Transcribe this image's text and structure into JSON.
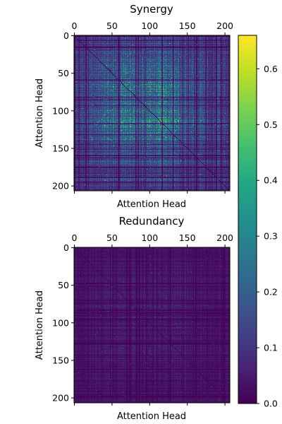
{
  "chart_data": [
    {
      "type": "heatmap",
      "title": "Synergy",
      "xlabel": "Attention Head",
      "ylabel": "Attention Head",
      "n": 207,
      "xticks": [
        0,
        50,
        100,
        150,
        200
      ],
      "yticks": [
        0,
        50,
        100,
        150,
        200
      ],
      "value_stats": {
        "typical": 0.12,
        "max": 0.6,
        "diagonal": 0.0
      },
      "note_hot_region_center": 95
    },
    {
      "type": "heatmap",
      "title": "Redundancy",
      "xlabel": "Attention Head",
      "ylabel": "Attention Head",
      "n": 207,
      "xticks": [
        0,
        50,
        100,
        150,
        200
      ],
      "yticks": [
        0,
        50,
        100,
        150,
        200
      ],
      "value_stats": {
        "typical": 0.04,
        "max": 0.3,
        "diagonal": 0.0
      }
    }
  ],
  "colorbar": {
    "colormap": "viridis",
    "min": 0.0,
    "max": 0.66,
    "ticks": [
      "0.0",
      "0.1",
      "0.2",
      "0.3",
      "0.4",
      "0.5",
      "0.6"
    ],
    "tick_values": [
      0.0,
      0.1,
      0.2,
      0.3,
      0.4,
      0.5,
      0.6
    ]
  }
}
